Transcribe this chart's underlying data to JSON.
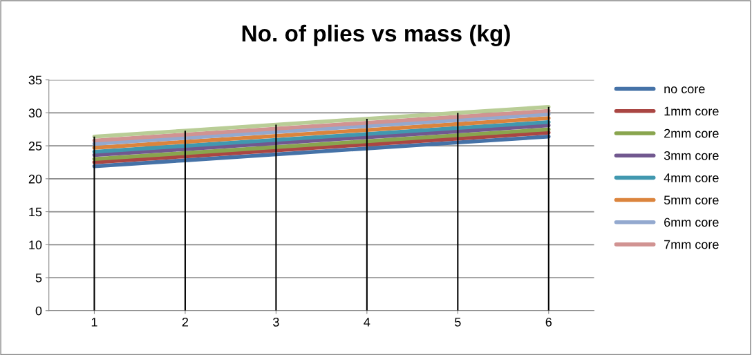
{
  "chart_data": {
    "type": "line",
    "title": "No. of plies vs mass (kg)",
    "categories": [
      "1",
      "2",
      "3",
      "4",
      "5",
      "6"
    ],
    "series": [
      {
        "name": "no core",
        "color": "#4572a7",
        "values": [
          21.9,
          22.8,
          23.7,
          24.6,
          25.5,
          26.4
        ]
      },
      {
        "name": "1mm core",
        "color": "#aa4643",
        "values": [
          22.5,
          23.4,
          24.3,
          25.2,
          26.1,
          27.0
        ]
      },
      {
        "name": "2mm core",
        "color": "#89a54e",
        "values": [
          23.0,
          23.9,
          24.8,
          25.7,
          26.6,
          27.5
        ]
      },
      {
        "name": "3mm core",
        "color": "#71588f",
        "values": [
          23.6,
          24.5,
          25.4,
          26.3,
          27.2,
          28.1
        ]
      },
      {
        "name": "4mm core",
        "color": "#4198af",
        "values": [
          24.1,
          25.0,
          25.9,
          26.8,
          27.7,
          28.6
        ]
      },
      {
        "name": "5mm core",
        "color": "#db843d",
        "values": [
          24.7,
          25.6,
          26.5,
          27.4,
          28.3,
          29.2
        ]
      },
      {
        "name": "6mm core",
        "color": "#93a9cf",
        "values": [
          25.3,
          26.2,
          27.1,
          28.0,
          28.9,
          29.8
        ]
      },
      {
        "name": "7mm core",
        "color": "#d19392",
        "values": [
          25.8,
          26.7,
          27.6,
          28.5,
          29.4,
          30.3
        ]
      },
      {
        "color": "#b9cd96",
        "values": [
          26.4,
          27.3,
          28.2,
          29.1,
          30.0,
          30.9
        ]
      }
    ],
    "ylim": [
      0,
      35
    ],
    "yticks": [
      0,
      5,
      10,
      15,
      20,
      25,
      30,
      35
    ],
    "ref_lines": [
      {
        "axis": "x",
        "value": "1",
        "color": "#000000"
      },
      {
        "axis": "x",
        "value": "2",
        "color": "#000000"
      },
      {
        "axis": "x",
        "value": "3",
        "color": "#000000"
      },
      {
        "axis": "x",
        "value": "4",
        "color": "#000000"
      },
      {
        "axis": "x",
        "value": "5",
        "color": "#000000"
      },
      {
        "axis": "x",
        "value": "6",
        "color": "#000000"
      }
    ],
    "grid": "y",
    "legend": "right",
    "marker": "none",
    "line_style": "solid"
  }
}
